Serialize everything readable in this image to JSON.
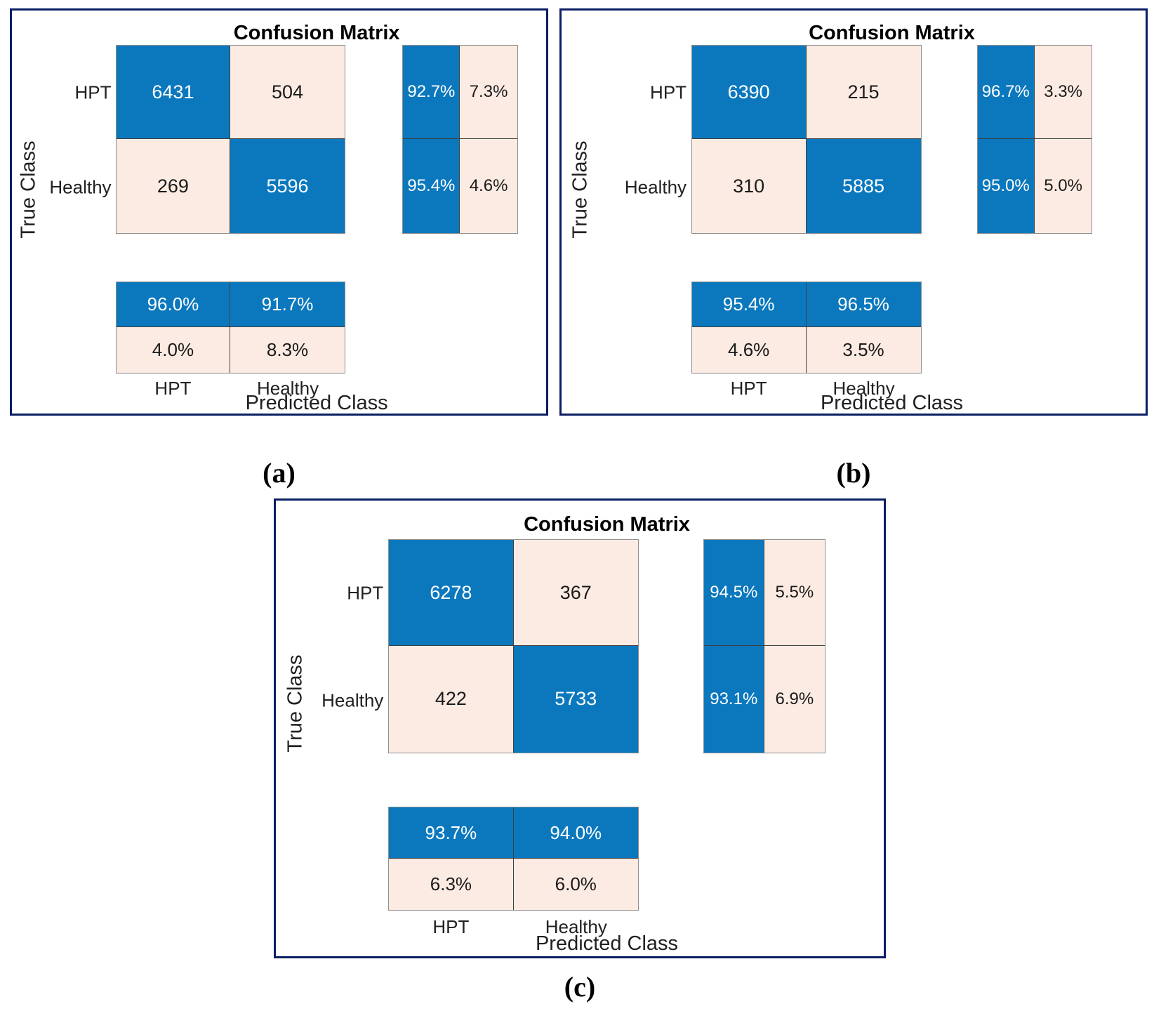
{
  "colors": {
    "blue": "#0b78be",
    "pink": "#fcebe2",
    "navy": "#0a1e63",
    "grid": "#3f3f3f"
  },
  "panels": [
    {
      "caption": "(a)",
      "title": "Confusion Matrix",
      "ylabel": "True Class",
      "xlabel": "Predicted Class",
      "classes": [
        "HPT",
        "Healthy"
      ],
      "matrix": [
        [
          "6431",
          "504"
        ],
        [
          "269",
          "5596"
        ]
      ],
      "row_summary": [
        [
          "92.7%",
          "7.3%"
        ],
        [
          "95.4%",
          "4.6%"
        ]
      ],
      "col_summary": [
        [
          "96.0%",
          "91.7%"
        ],
        [
          "4.0%",
          "8.3%"
        ]
      ]
    },
    {
      "caption": "(b)",
      "title": "Confusion Matrix",
      "ylabel": "True Class",
      "xlabel": "Predicted Class",
      "classes": [
        "HPT",
        "Healthy"
      ],
      "matrix": [
        [
          "6390",
          "215"
        ],
        [
          "310",
          "5885"
        ]
      ],
      "row_summary": [
        [
          "96.7%",
          "3.3%"
        ],
        [
          "95.0%",
          "5.0%"
        ]
      ],
      "col_summary": [
        [
          "95.4%",
          "96.5%"
        ],
        [
          "4.6%",
          "3.5%"
        ]
      ]
    },
    {
      "caption": "(c)",
      "title": "Confusion Matrix",
      "ylabel": "True Class",
      "xlabel": "Predicted Class",
      "classes": [
        "HPT",
        "Healthy"
      ],
      "matrix": [
        [
          "6278",
          "367"
        ],
        [
          "422",
          "5733"
        ]
      ],
      "row_summary": [
        [
          "94.5%",
          "5.5%"
        ],
        [
          "93.1%",
          "6.9%"
        ]
      ],
      "col_summary": [
        [
          "93.7%",
          "94.0%"
        ],
        [
          "6.3%",
          "6.0%"
        ]
      ]
    }
  ],
  "chart_data": [
    {
      "type": "heatmap",
      "title": "Confusion Matrix",
      "subfigure": "(a)",
      "xlabel": "Predicted Class",
      "ylabel": "True Class",
      "classes": [
        "HPT",
        "Healthy"
      ],
      "matrix_counts": [
        [
          6431,
          504
        ],
        [
          269,
          5596
        ]
      ],
      "row_summary_pct": [
        [
          92.7,
          7.3
        ],
        [
          95.4,
          4.6
        ]
      ],
      "col_summary_pct": [
        [
          96.0,
          91.7
        ],
        [
          4.0,
          8.3
        ]
      ],
      "legend_position": "none",
      "grid": false
    },
    {
      "type": "heatmap",
      "title": "Confusion Matrix",
      "subfigure": "(b)",
      "xlabel": "Predicted Class",
      "ylabel": "True Class",
      "classes": [
        "HPT",
        "Healthy"
      ],
      "matrix_counts": [
        [
          6390,
          215
        ],
        [
          310,
          5885
        ]
      ],
      "row_summary_pct": [
        [
          96.7,
          3.3
        ],
        [
          95.0,
          5.0
        ]
      ],
      "col_summary_pct": [
        [
          95.4,
          96.5
        ],
        [
          4.6,
          3.5
        ]
      ],
      "legend_position": "none",
      "grid": false
    },
    {
      "type": "heatmap",
      "title": "Confusion Matrix",
      "subfigure": "(c)",
      "xlabel": "Predicted Class",
      "ylabel": "True Class",
      "classes": [
        "HPT",
        "Healthy"
      ],
      "matrix_counts": [
        [
          6278,
          367
        ],
        [
          422,
          5733
        ]
      ],
      "row_summary_pct": [
        [
          94.5,
          5.5
        ],
        [
          93.1,
          6.9
        ]
      ],
      "col_summary_pct": [
        [
          93.7,
          94.0
        ],
        [
          6.3,
          6.0
        ]
      ],
      "legend_position": "none",
      "grid": false
    }
  ]
}
